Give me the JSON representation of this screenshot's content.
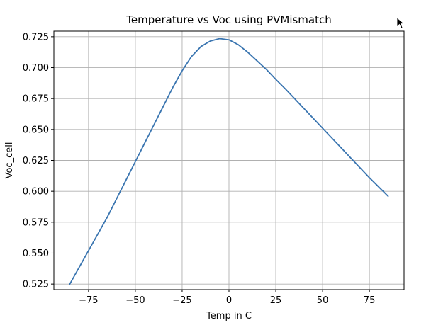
{
  "chart_data": {
    "type": "line",
    "title": "Temperature vs Voc using PVMismatch",
    "xlabel": "Temp in C",
    "ylabel": "Voc_cell",
    "xlim": [
      -93.5,
      93.5
    ],
    "ylim": [
      0.5205,
      0.7295
    ],
    "xticks": [
      -75,
      -50,
      -25,
      0,
      25,
      50,
      75
    ],
    "xtick_labels": [
      "−75",
      "−50",
      "−25",
      "0",
      "25",
      "50",
      "75"
    ],
    "yticks": [
      0.525,
      0.55,
      0.575,
      0.6,
      0.625,
      0.65,
      0.675,
      0.7,
      0.725
    ],
    "ytick_labels": [
      "0.525",
      "0.550",
      "0.575",
      "0.600",
      "0.625",
      "0.650",
      "0.675",
      "0.700",
      "0.725"
    ],
    "grid": true,
    "series": [
      {
        "color": "#3a75b0",
        "x": [
          -85,
          -80,
          -75,
          -70,
          -65,
          -60,
          -55,
          -50,
          -45,
          -40,
          -35,
          -30,
          -25,
          -20,
          -15,
          -10,
          -5,
          0,
          5,
          10,
          15,
          20,
          25,
          30,
          35,
          40,
          45,
          50,
          55,
          60,
          65,
          70,
          75,
          80,
          85
        ],
        "y": [
          0.525,
          0.5385,
          0.552,
          0.5655,
          0.579,
          0.594,
          0.609,
          0.624,
          0.639,
          0.654,
          0.669,
          0.684,
          0.6975,
          0.709,
          0.717,
          0.7215,
          0.7235,
          0.7225,
          0.7185,
          0.7125,
          0.7055,
          0.6985,
          0.6905,
          0.683,
          0.675,
          0.667,
          0.659,
          0.651,
          0.643,
          0.635,
          0.627,
          0.619,
          0.611,
          0.6035,
          0.596
        ]
      }
    ]
  }
}
